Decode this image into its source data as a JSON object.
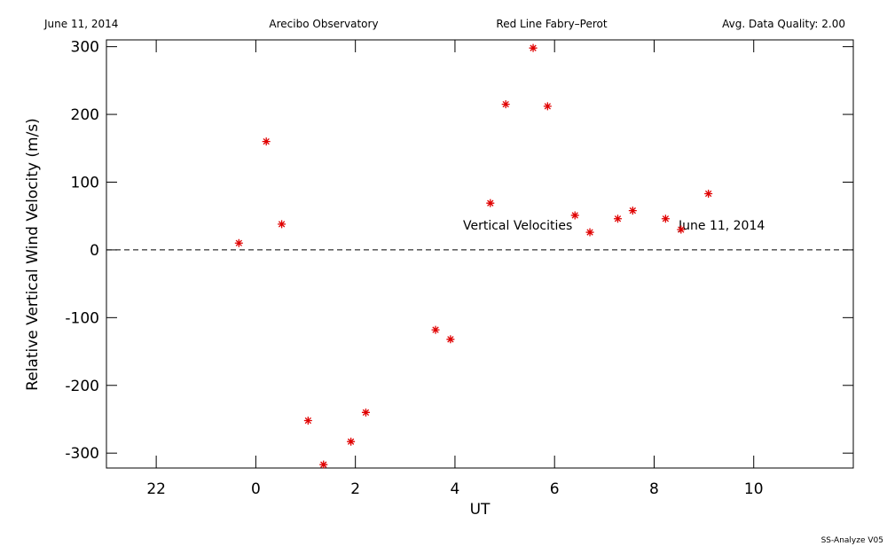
{
  "header": {
    "date": "June 11, 2014",
    "site": "Arecibo Observatory",
    "instrument": "Red Line Fabry–Perot",
    "quality": "Avg. Data Quality: 2.00"
  },
  "footer": "SS-Analyze V05",
  "chart_data": {
    "type": "scatter",
    "x_label": "UT",
    "y_label": "Relative Vertical Wind Velocity (m/s)",
    "annotations": [
      "Vertical Velocities",
      "June 11, 2014"
    ],
    "color": "#e00000",
    "x": [
      -0.34,
      0.21,
      0.52,
      1.05,
      1.36,
      1.91,
      2.21,
      3.61,
      3.91,
      4.71,
      5.02,
      5.57,
      5.86,
      6.41,
      6.71,
      7.27,
      7.57,
      8.23,
      8.54,
      9.09
    ],
    "values": [
      10,
      160,
      38,
      -252,
      -317,
      -283,
      -240,
      -118,
      -132,
      69,
      215,
      298,
      212,
      51,
      26,
      46,
      58,
      46,
      30,
      83
    ],
    "xlim": [
      -3,
      12
    ],
    "xticks": [
      {
        "value": -2,
        "label": "22"
      },
      0,
      2,
      4,
      6,
      8,
      10
    ],
    "ylim": [
      -322,
      310
    ],
    "yticks": [
      -300,
      -200,
      -100,
      0,
      100,
      200,
      300
    ],
    "reference_line": 0
  }
}
